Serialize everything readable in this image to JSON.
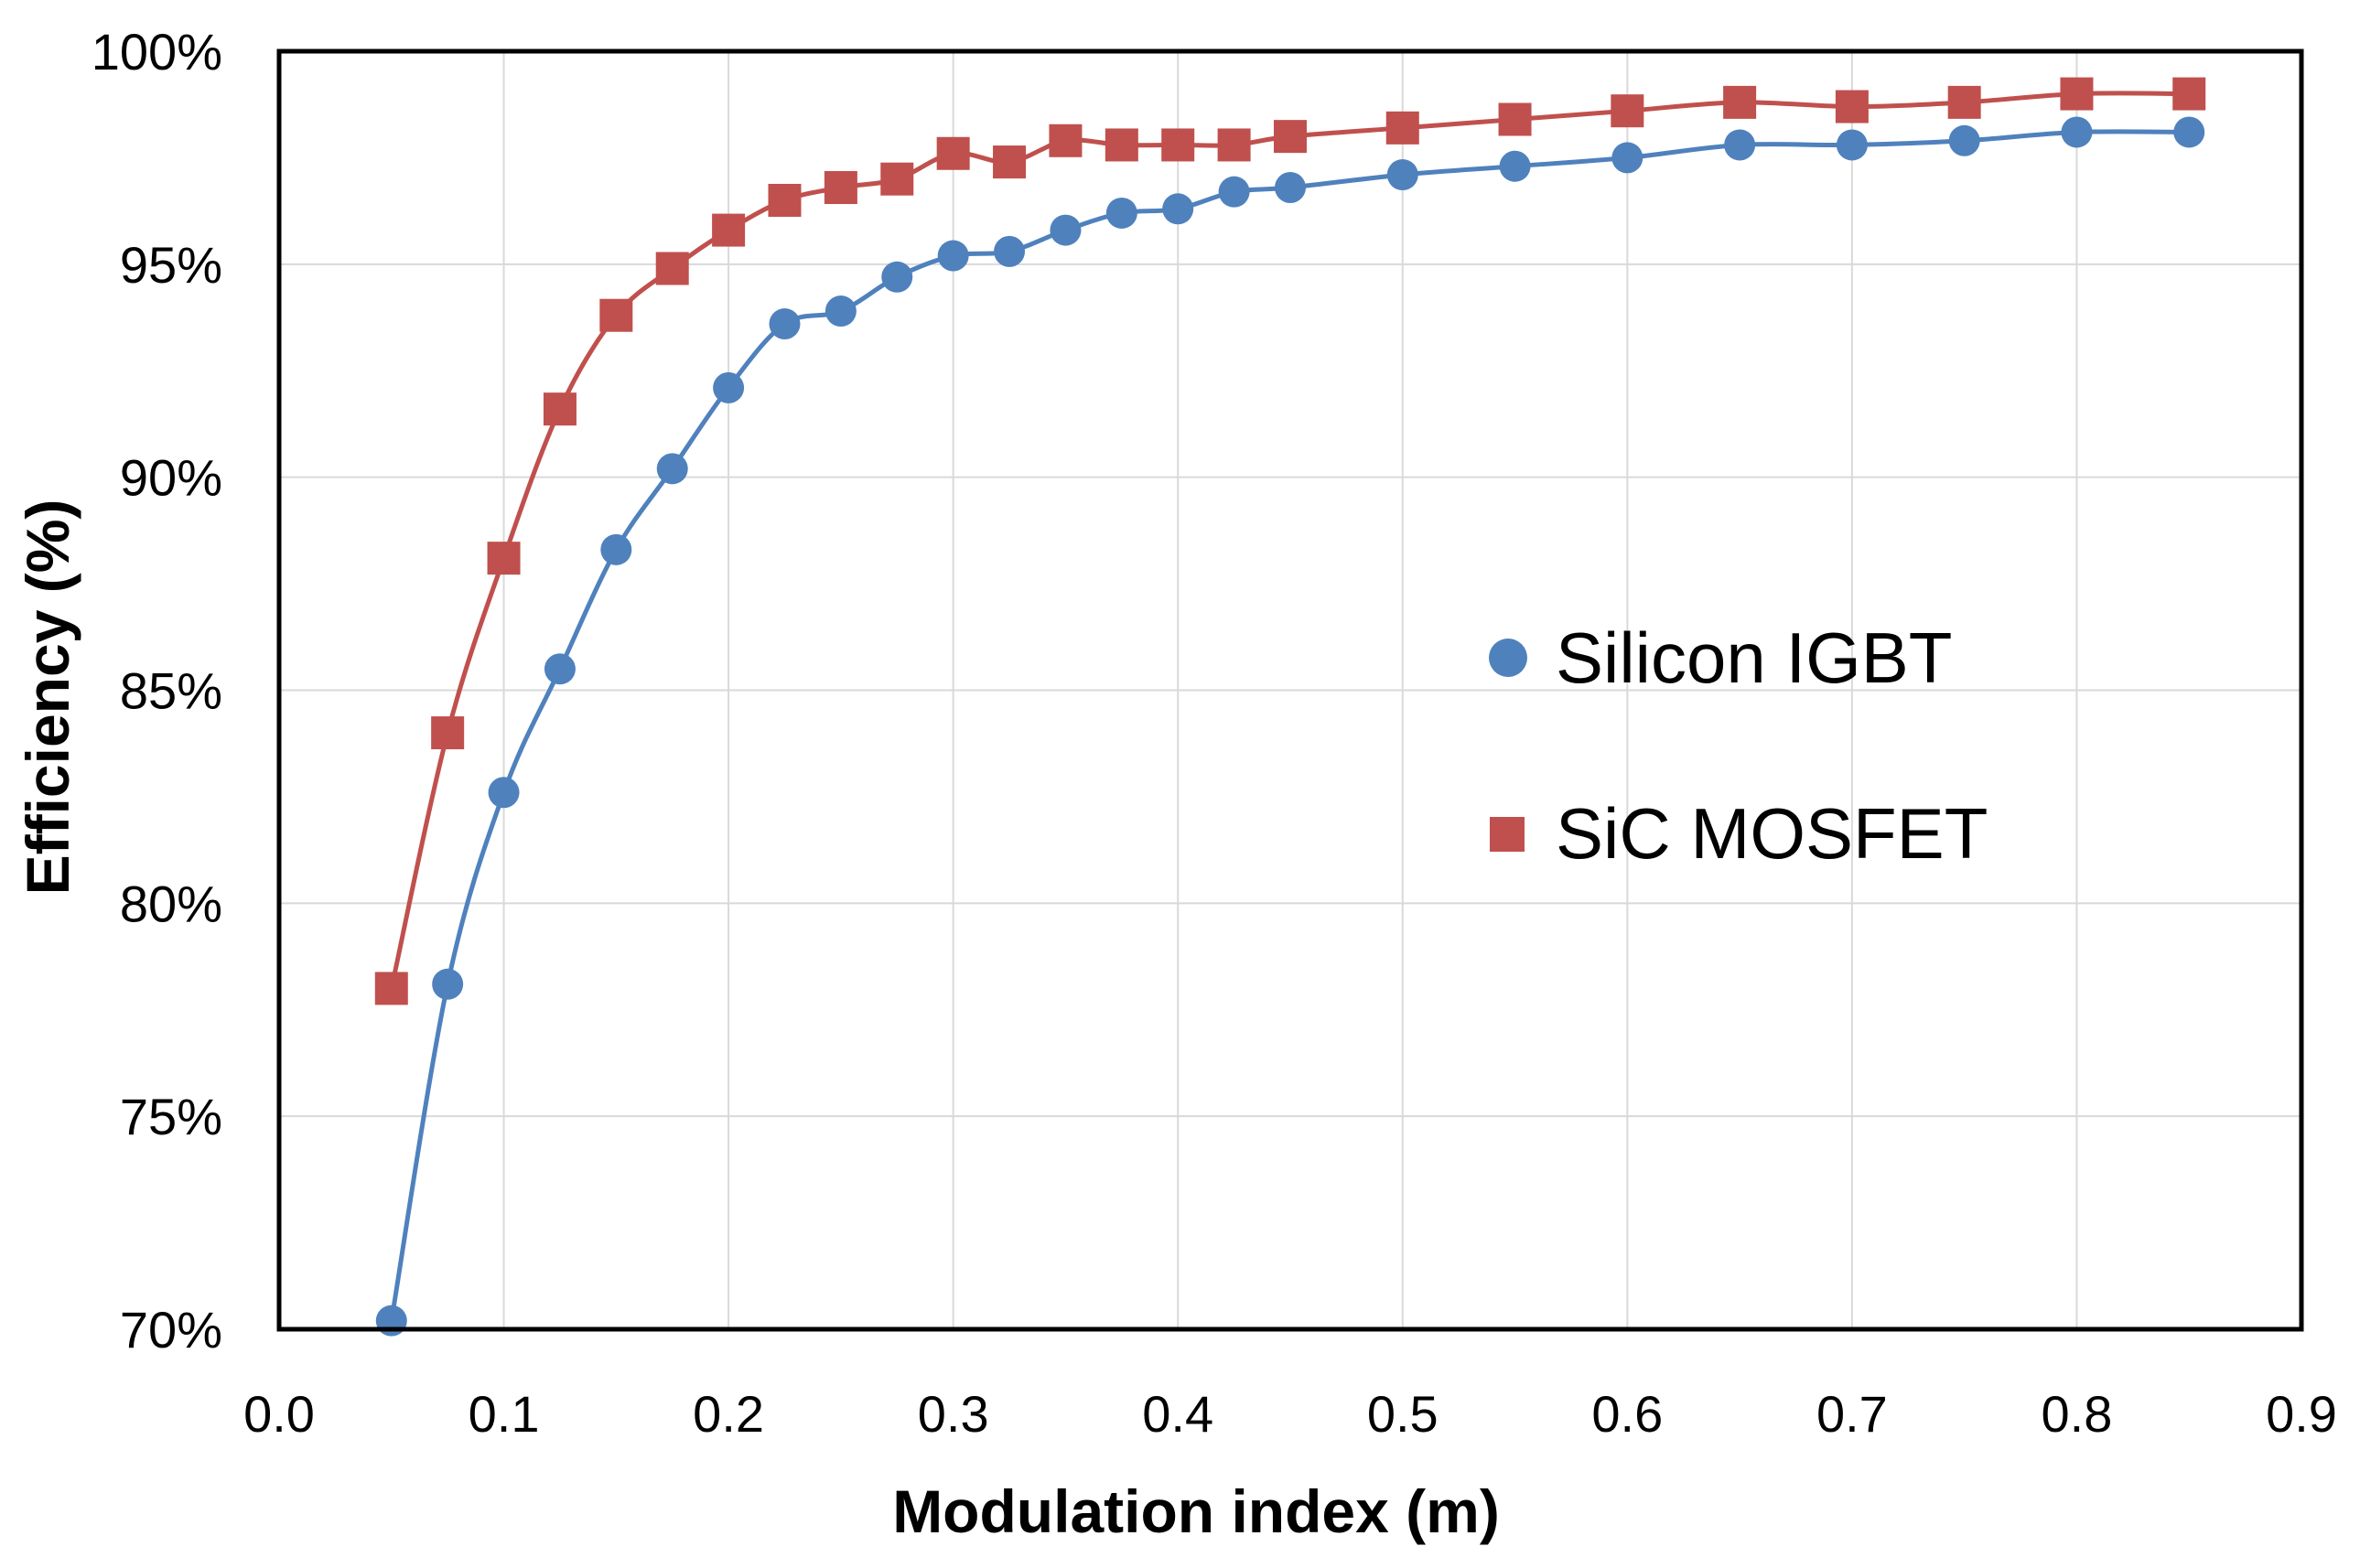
{
  "chart_data": {
    "type": "scatter",
    "title": "",
    "xlabel": "Modulation index (m)",
    "ylabel": "Efficiency (%)",
    "xlim": [
      0.0,
      0.9
    ],
    "ylim": [
      70,
      100
    ],
    "x_ticks": [
      0.0,
      0.1,
      0.2,
      0.3,
      0.4,
      0.5,
      0.6,
      0.7,
      0.8,
      0.9
    ],
    "x_tick_labels": [
      "0.0",
      "0.1",
      "0.2",
      "0.3",
      "0.4",
      "0.5",
      "0.6",
      "0.7",
      "0.8",
      "0.9"
    ],
    "y_ticks": [
      70,
      75,
      80,
      85,
      90,
      95,
      100
    ],
    "y_tick_labels": [
      "70%",
      "75%",
      "80%",
      "85%",
      "90%",
      "95%",
      "100%"
    ],
    "grid": true,
    "legend_position": "center-right",
    "series": [
      {
        "name": "Silicon IGBT",
        "color": "#4f81bd",
        "marker": "circle",
        "smooth_line": true,
        "x": [
          0.05,
          0.075,
          0.1,
          0.125,
          0.15,
          0.175,
          0.2,
          0.225,
          0.25,
          0.275,
          0.3,
          0.325,
          0.35,
          0.375,
          0.4,
          0.425,
          0.45,
          0.5,
          0.55,
          0.6,
          0.65,
          0.7,
          0.75,
          0.8,
          0.85
        ],
        "y": [
          70.2,
          78.1,
          82.6,
          85.5,
          88.3,
          90.2,
          92.1,
          93.6,
          93.9,
          94.7,
          95.2,
          95.3,
          95.8,
          96.2,
          96.3,
          96.7,
          96.8,
          97.1,
          97.3,
          97.5,
          97.8,
          97.8,
          97.9,
          98.1,
          98.1
        ]
      },
      {
        "name": "SiC MOSFET",
        "color": "#c0504d",
        "marker": "square",
        "smooth_line": true,
        "x": [
          0.05,
          0.075,
          0.1,
          0.125,
          0.15,
          0.175,
          0.2,
          0.225,
          0.25,
          0.275,
          0.3,
          0.325,
          0.35,
          0.375,
          0.4,
          0.425,
          0.45,
          0.5,
          0.55,
          0.6,
          0.65,
          0.7,
          0.75,
          0.8,
          0.85
        ],
        "y": [
          78.0,
          84.0,
          88.1,
          91.6,
          93.8,
          94.9,
          95.8,
          96.5,
          96.8,
          97.0,
          97.6,
          97.4,
          97.9,
          97.8,
          97.8,
          97.8,
          98.0,
          98.2,
          98.4,
          98.6,
          98.8,
          98.7,
          98.8,
          99.0,
          99.0
        ]
      }
    ]
  }
}
